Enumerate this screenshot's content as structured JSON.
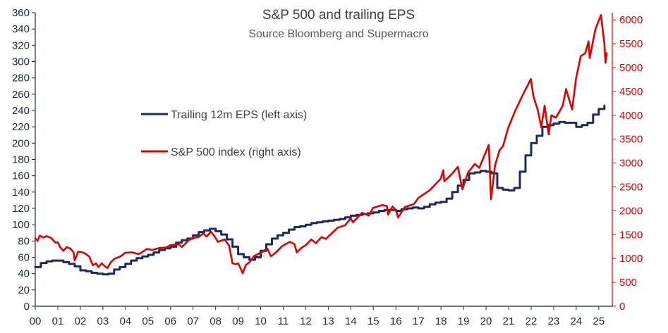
{
  "chart_data": {
    "type": "line",
    "title": "S&P 500 and trailing EPS",
    "subtitle": "Source Bloomberg and Supermacro",
    "x_axis": {
      "range": [
        2000,
        2025.6
      ],
      "ticks": [
        2000,
        2001,
        2002,
        2003,
        2004,
        2005,
        2006,
        2007,
        2008,
        2009,
        2010,
        2011,
        2012,
        2013,
        2014,
        2015,
        2016,
        2017,
        2018,
        2019,
        2020,
        2021,
        2022,
        2023,
        2024,
        2025
      ],
      "tick_labels": [
        "00",
        "01",
        "02",
        "03",
        "04",
        "05",
        "06",
        "07",
        "08",
        "09",
        "10",
        "11",
        "12",
        "13",
        "14",
        "15",
        "16",
        "17",
        "18",
        "19",
        "20",
        "21",
        "22",
        "23",
        "24",
        "25"
      ]
    },
    "y_left": {
      "range": [
        0,
        360
      ],
      "ticks": [
        0,
        20,
        40,
        60,
        80,
        100,
        120,
        140,
        160,
        180,
        200,
        220,
        240,
        260,
        280,
        300,
        320,
        340,
        360
      ],
      "tick_labels": [
        "0",
        "20",
        "40",
        "60",
        "80",
        "100",
        "120",
        "140",
        "160",
        "180",
        "200",
        "220",
        "240",
        "260",
        "280",
        "300",
        "320",
        "340",
        "360"
      ]
    },
    "y_right": {
      "range": [
        0,
        6150
      ],
      "ticks": [
        0,
        500,
        1000,
        1500,
        2000,
        2500,
        3000,
        3500,
        4000,
        4500,
        5000,
        5500,
        6000
      ],
      "tick_labels": [
        "0",
        "500",
        "1000",
        "1500",
        "2000",
        "2500",
        "3000",
        "3500",
        "4000",
        "4500",
        "5000",
        "5500",
        "6000"
      ]
    },
    "legend": {
      "placement": "upper-left",
      "stacked": true
    },
    "series": [
      {
        "name": "Trailing 12m EPS (left axis)",
        "axis": "left",
        "color": "#1f2a5c",
        "step": true,
        "points": [
          [
            2000.0,
            48
          ],
          [
            2000.25,
            53
          ],
          [
            2000.5,
            55
          ],
          [
            2000.75,
            56
          ],
          [
            2001.0,
            56
          ],
          [
            2001.25,
            54
          ],
          [
            2001.5,
            52
          ],
          [
            2001.75,
            49
          ],
          [
            2002.0,
            44
          ],
          [
            2002.25,
            43
          ],
          [
            2002.5,
            41
          ],
          [
            2002.75,
            40
          ],
          [
            2003.0,
            39
          ],
          [
            2003.25,
            40
          ],
          [
            2003.5,
            45
          ],
          [
            2003.75,
            48
          ],
          [
            2004.0,
            52
          ],
          [
            2004.25,
            56
          ],
          [
            2004.5,
            59
          ],
          [
            2004.75,
            61
          ],
          [
            2005.0,
            63
          ],
          [
            2005.25,
            66
          ],
          [
            2005.5,
            69
          ],
          [
            2005.75,
            71
          ],
          [
            2006.0,
            73
          ],
          [
            2006.25,
            78
          ],
          [
            2006.5,
            81
          ],
          [
            2006.75,
            83
          ],
          [
            2007.0,
            87
          ],
          [
            2007.25,
            91
          ],
          [
            2007.5,
            93
          ],
          [
            2007.75,
            95
          ],
          [
            2008.0,
            92
          ],
          [
            2008.25,
            88
          ],
          [
            2008.5,
            82
          ],
          [
            2008.75,
            73
          ],
          [
            2009.0,
            64
          ],
          [
            2009.25,
            60
          ],
          [
            2009.5,
            57
          ],
          [
            2009.75,
            60
          ],
          [
            2010.0,
            68
          ],
          [
            2010.25,
            76
          ],
          [
            2010.5,
            83
          ],
          [
            2010.75,
            87
          ],
          [
            2011.0,
            90
          ],
          [
            2011.25,
            94
          ],
          [
            2011.5,
            97
          ],
          [
            2011.75,
            98
          ],
          [
            2012.0,
            100
          ],
          [
            2012.25,
            102
          ],
          [
            2012.5,
            103
          ],
          [
            2012.75,
            104
          ],
          [
            2013.0,
            105
          ],
          [
            2013.25,
            106
          ],
          [
            2013.5,
            107
          ],
          [
            2013.75,
            109
          ],
          [
            2014.0,
            111
          ],
          [
            2014.25,
            112
          ],
          [
            2014.5,
            113
          ],
          [
            2014.75,
            114
          ],
          [
            2015.0,
            115
          ],
          [
            2015.25,
            117
          ],
          [
            2015.5,
            118
          ],
          [
            2015.75,
            118
          ],
          [
            2016.0,
            117
          ],
          [
            2016.25,
            119
          ],
          [
            2016.5,
            120
          ],
          [
            2016.75,
            121
          ],
          [
            2017.0,
            120
          ],
          [
            2017.25,
            122
          ],
          [
            2017.5,
            125
          ],
          [
            2017.75,
            127
          ],
          [
            2018.0,
            128
          ],
          [
            2018.25,
            132
          ],
          [
            2018.5,
            140
          ],
          [
            2018.75,
            148
          ],
          [
            2019.0,
            155
          ],
          [
            2019.25,
            163
          ],
          [
            2019.5,
            164
          ],
          [
            2019.75,
            166
          ],
          [
            2020.0,
            165
          ],
          [
            2020.25,
            163
          ],
          [
            2020.5,
            145
          ],
          [
            2020.75,
            143
          ],
          [
            2021.0,
            142
          ],
          [
            2021.25,
            145
          ],
          [
            2021.5,
            165
          ],
          [
            2021.75,
            185
          ],
          [
            2022.0,
            200
          ],
          [
            2022.25,
            209
          ],
          [
            2022.5,
            220
          ],
          [
            2022.75,
            222
          ],
          [
            2023.0,
            224
          ],
          [
            2023.25,
            226
          ],
          [
            2023.5,
            225
          ],
          [
            2023.75,
            225
          ],
          [
            2024.0,
            220
          ],
          [
            2024.25,
            222
          ],
          [
            2024.5,
            225
          ],
          [
            2024.75,
            235
          ],
          [
            2025.0,
            242
          ],
          [
            2025.25,
            246
          ]
        ]
      },
      {
        "name": "S&P 500 index (right axis)",
        "axis": "right",
        "color": "#e00000",
        "step": false,
        "points": [
          [
            2000.0,
            1420
          ],
          [
            2000.1,
            1370
          ],
          [
            2000.2,
            1480
          ],
          [
            2000.35,
            1440
          ],
          [
            2000.5,
            1470
          ],
          [
            2000.7,
            1430
          ],
          [
            2000.9,
            1330
          ],
          [
            2001.0,
            1340
          ],
          [
            2001.1,
            1240
          ],
          [
            2001.25,
            1160
          ],
          [
            2001.4,
            1240
          ],
          [
            2001.55,
            1210
          ],
          [
            2001.7,
            1130
          ],
          [
            2001.75,
            960
          ],
          [
            2001.9,
            1140
          ],
          [
            2002.0,
            1140
          ],
          [
            2002.2,
            1110
          ],
          [
            2002.4,
            1040
          ],
          [
            2002.55,
            860
          ],
          [
            2002.7,
            900
          ],
          [
            2002.8,
            820
          ],
          [
            2002.95,
            900
          ],
          [
            2003.1,
            830
          ],
          [
            2003.2,
            800
          ],
          [
            2003.35,
            920
          ],
          [
            2003.5,
            990
          ],
          [
            2003.8,
            1050
          ],
          [
            2004.0,
            1120
          ],
          [
            2004.3,
            1130
          ],
          [
            2004.6,
            1090
          ],
          [
            2004.95,
            1200
          ],
          [
            2005.2,
            1180
          ],
          [
            2005.5,
            1220
          ],
          [
            2005.8,
            1230
          ],
          [
            2006.0,
            1280
          ],
          [
            2006.35,
            1300
          ],
          [
            2006.5,
            1240
          ],
          [
            2006.8,
            1380
          ],
          [
            2007.0,
            1430
          ],
          [
            2007.25,
            1450
          ],
          [
            2007.45,
            1530
          ],
          [
            2007.6,
            1460
          ],
          [
            2007.8,
            1560
          ],
          [
            2007.95,
            1470
          ],
          [
            2008.1,
            1350
          ],
          [
            2008.4,
            1400
          ],
          [
            2008.6,
            1270
          ],
          [
            2008.75,
            900
          ],
          [
            2008.9,
            880
          ],
          [
            2009.0,
            900
          ],
          [
            2009.15,
            750
          ],
          [
            2009.2,
            690
          ],
          [
            2009.35,
            870
          ],
          [
            2009.5,
            920
          ],
          [
            2009.7,
            1050
          ],
          [
            2010.0,
            1120
          ],
          [
            2010.3,
            1210
          ],
          [
            2010.45,
            1050
          ],
          [
            2010.55,
            1080
          ],
          [
            2010.7,
            1140
          ],
          [
            2010.95,
            1260
          ],
          [
            2011.3,
            1350
          ],
          [
            2011.5,
            1300
          ],
          [
            2011.6,
            1130
          ],
          [
            2011.8,
            1220
          ],
          [
            2012.0,
            1280
          ],
          [
            2012.25,
            1400
          ],
          [
            2012.45,
            1320
          ],
          [
            2012.7,
            1450
          ],
          [
            2012.9,
            1410
          ],
          [
            2013.0,
            1460
          ],
          [
            2013.4,
            1640
          ],
          [
            2013.75,
            1700
          ],
          [
            2013.99,
            1840
          ],
          [
            2014.1,
            1760
          ],
          [
            2014.5,
            1960
          ],
          [
            2014.8,
            1900
          ],
          [
            2014.99,
            2060
          ],
          [
            2015.4,
            2120
          ],
          [
            2015.6,
            2100
          ],
          [
            2015.65,
            1920
          ],
          [
            2015.85,
            2090
          ],
          [
            2016.0,
            2010
          ],
          [
            2016.1,
            1860
          ],
          [
            2016.4,
            2080
          ],
          [
            2016.8,
            2140
          ],
          [
            2017.0,
            2270
          ],
          [
            2017.5,
            2430
          ],
          [
            2017.99,
            2670
          ],
          [
            2018.1,
            2850
          ],
          [
            2018.15,
            2620
          ],
          [
            2018.5,
            2780
          ],
          [
            2018.75,
            2920
          ],
          [
            2018.95,
            2450
          ],
          [
            2019.2,
            2800
          ],
          [
            2019.5,
            2980
          ],
          [
            2019.7,
            2900
          ],
          [
            2019.99,
            3230
          ],
          [
            2020.12,
            3380
          ],
          [
            2020.22,
            2240
          ],
          [
            2020.4,
            2950
          ],
          [
            2020.6,
            3270
          ],
          [
            2020.75,
            3350
          ],
          [
            2020.99,
            3750
          ],
          [
            2021.3,
            4100
          ],
          [
            2021.6,
            4400
          ],
          [
            2021.99,
            4760
          ],
          [
            2022.1,
            4400
          ],
          [
            2022.3,
            4100
          ],
          [
            2022.45,
            3750
          ],
          [
            2022.6,
            4200
          ],
          [
            2022.78,
            3600
          ],
          [
            2022.9,
            4000
          ],
          [
            2023.1,
            3950
          ],
          [
            2023.4,
            4200
          ],
          [
            2023.55,
            4550
          ],
          [
            2023.82,
            4120
          ],
          [
            2023.99,
            4770
          ],
          [
            2024.2,
            5240
          ],
          [
            2024.4,
            5300
          ],
          [
            2024.55,
            5550
          ],
          [
            2024.6,
            5200
          ],
          [
            2024.85,
            5800
          ],
          [
            2025.1,
            6100
          ],
          [
            2025.15,
            5900
          ],
          [
            2025.25,
            5500
          ],
          [
            2025.3,
            5100
          ],
          [
            2025.35,
            5300
          ]
        ]
      }
    ]
  }
}
